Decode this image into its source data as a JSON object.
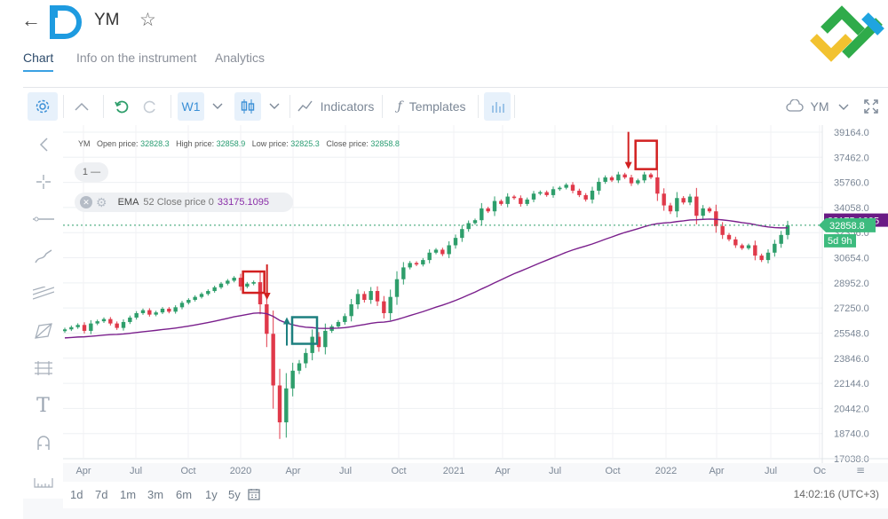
{
  "header": {
    "back_icon": "arrow-left-icon",
    "symbol": "YM",
    "star_icon": "star-outline-icon"
  },
  "tabs": [
    {
      "label": "Chart",
      "active": true
    },
    {
      "label": "Info on the instrument",
      "active": false
    },
    {
      "label": "Analytics",
      "active": false
    }
  ],
  "toolbar": {
    "timeframe": "W1",
    "indicators_label": "Indicators",
    "templates_label": "Templates",
    "instrument": "YM"
  },
  "legend": {
    "symbol": "YM",
    "open_label": "Open price:",
    "open": "32828.3",
    "high_label": "High price:",
    "high": "32858.9",
    "low_label": "Low price:",
    "low": "32825.3",
    "close_label": "Close price:",
    "close": "32858.8"
  },
  "pane_pill": "1 —",
  "ema": {
    "name": "EMA",
    "params": "52 Close price 0",
    "value": "33175.1095"
  },
  "price_axis": [
    "39164.0",
    "37462.0",
    "35760.0",
    "34058.0",
    "32356.0",
    "30654.0",
    "28952.0",
    "27250.0",
    "25548.0",
    "23846.0",
    "22144.0",
    "20442.0",
    "18740.0",
    "17038.0"
  ],
  "price_labels": {
    "ema_tag": "33175.1095",
    "last_price": "32858.8",
    "countdown": "5d 9h"
  },
  "time_axis": [
    "Apr",
    "Jul",
    "Oct",
    "2020",
    "Apr",
    "Jul",
    "Oct",
    "2021",
    "Apr",
    "Jul",
    "Oct",
    "2022",
    "Apr",
    "Jul",
    "Oc"
  ],
  "periods": [
    "1d",
    "7d",
    "1m",
    "3m",
    "6m",
    "1y",
    "5y"
  ],
  "clock": "14:02:16 (UTC+3)",
  "colors": {
    "up": "#2e9e6b",
    "down": "#e0394a",
    "ema": "#7a1f8c",
    "marker_red": "#d22020",
    "marker_teal": "#1d7f7f",
    "accent": "#3aa1e3"
  },
  "chart_data": {
    "type": "candlestick",
    "title": "YM",
    "timeframe": "W1",
    "ylim": [
      17038.0,
      39164.0
    ],
    "x_ticks": [
      "Apr",
      "Jul",
      "Oct",
      "2020",
      "Apr",
      "Jul",
      "Oct",
      "2021",
      "Apr",
      "Jul",
      "Oct",
      "2022",
      "Apr",
      "Jul",
      "Oc"
    ],
    "series": [
      {
        "name": "YM",
        "kind": "candles",
        "closes": [
          25800,
          25950,
          26100,
          25700,
          26200,
          26350,
          26500,
          26200,
          25900,
          26300,
          26600,
          26900,
          27100,
          26800,
          26950,
          27200,
          27000,
          27300,
          27600,
          27800,
          28000,
          28200,
          28400,
          28650,
          28900,
          29100,
          29300,
          28700,
          28900,
          29000,
          27500,
          25500,
          22000,
          19500,
          21800,
          23000,
          23500,
          24200,
          25300,
          24600,
          25700,
          26000,
          26300,
          26700,
          27500,
          28200,
          27800,
          28400,
          27700,
          26900,
          28000,
          29200,
          30000,
          30300,
          30200,
          30500,
          31000,
          31200,
          30900,
          31500,
          32000,
          32600,
          33000,
          33200,
          34000,
          33800,
          34500,
          34300,
          34800,
          34700,
          34300,
          34600,
          35000,
          35100,
          34900,
          35300,
          35400,
          35600,
          35200,
          34900,
          34600,
          35200,
          35800,
          36100,
          35900,
          36300,
          36100,
          35700,
          35900,
          36300,
          36100,
          35000,
          34200,
          33800,
          34700,
          34400,
          34800,
          33500,
          34000,
          33800,
          32800,
          32200,
          31900,
          31500,
          31300,
          31500,
          30800,
          30500,
          31000,
          31600,
          32200,
          32858.8
        ]
      },
      {
        "name": "EMA 52",
        "kind": "line",
        "last": 33175.1095
      }
    ]
  }
}
